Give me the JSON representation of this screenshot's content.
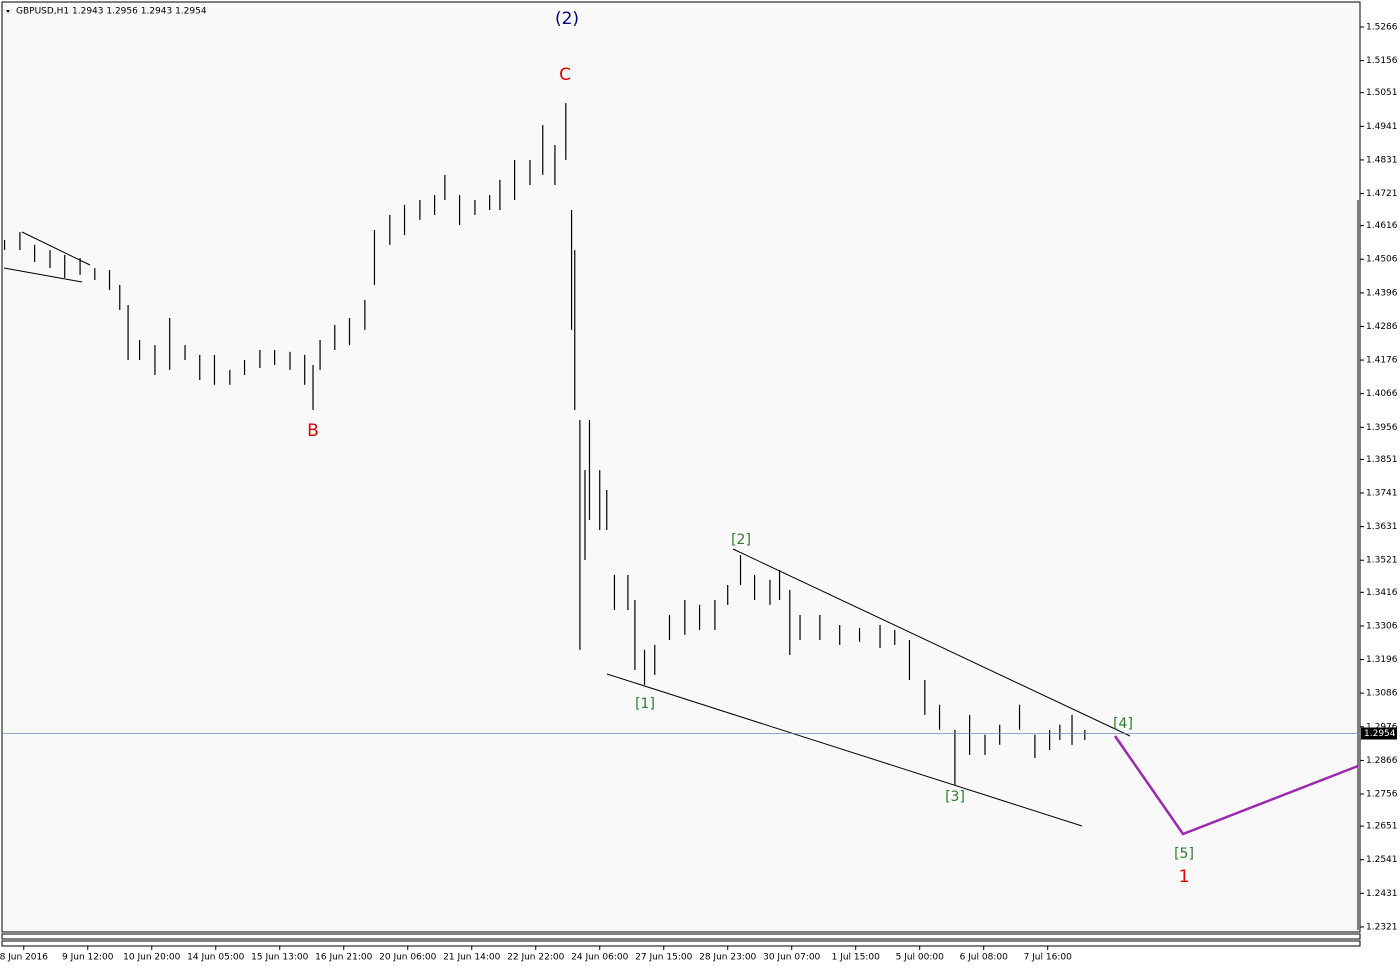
{
  "header": "GBPUSD,H1  1.2943 1.2956 1.2943 1.2954",
  "annotations": {
    "wave_2": "(2)",
    "c": "C",
    "b": "B",
    "w1": "[1]",
    "w2": "[2]",
    "w3": "[3]",
    "w4": "[4]",
    "w5": "[5]",
    "one": "1"
  },
  "chart_data": {
    "type": "hilo",
    "current_price": 1.2954,
    "ylim": [
      1.2311,
      1.5338
    ],
    "yticks": [
      1.5266,
      1.5156,
      1.5051,
      1.4941,
      1.4831,
      1.4721,
      1.4616,
      1.4506,
      1.4396,
      1.4286,
      1.4176,
      1.4066,
      1.3956,
      1.3851,
      1.3741,
      1.3631,
      1.3521,
      1.3416,
      1.3306,
      1.3196,
      1.3086,
      1.2976,
      1.2866,
      1.2756,
      1.2651,
      1.2541,
      1.2431,
      1.2321
    ],
    "xlim": [
      -0.34,
      20.88
    ],
    "xticks": [
      {
        "value": 0,
        "label": "8 Jun 2016"
      },
      {
        "value": 1,
        "label": "9 Jun 12:00"
      },
      {
        "value": 2,
        "label": "10 Jun 20:00"
      },
      {
        "value": 3,
        "label": "14 Jun 05:00"
      },
      {
        "value": 4,
        "label": "15 Jun 13:00"
      },
      {
        "value": 5,
        "label": "16 Jun 21:00"
      },
      {
        "value": 6,
        "label": "20 Jun 06:00"
      },
      {
        "value": 7,
        "label": "21 Jun 14:00"
      },
      {
        "value": 8,
        "label": "22 Jun 22:00"
      },
      {
        "value": 9,
        "label": "24 Jun 06:00"
      },
      {
        "value": 10,
        "label": "27 Jun 15:00"
      },
      {
        "value": 11,
        "label": "28 Jun 23:00"
      },
      {
        "value": 12,
        "label": "30 Jun 07:00"
      },
      {
        "value": 13,
        "label": "1 Jul 15:00"
      },
      {
        "value": 14,
        "label": "5 Jul 00:00"
      },
      {
        "value": 15,
        "label": "6 Jul 08:00"
      },
      {
        "value": 16,
        "label": "7 Jul 16:00"
      }
    ],
    "x": [
      -0.3,
      -0.06,
      0.17,
      0.41,
      0.64,
      0.88,
      1.11,
      1.34,
      1.5,
      1.63,
      1.81,
      2.05,
      2.28,
      2.52,
      2.75,
      2.98,
      3.22,
      3.45,
      3.69,
      3.92,
      4.16,
      4.39,
      4.52,
      4.63,
      4.86,
      5.09,
      5.33,
      5.48,
      5.72,
      5.95,
      6.19,
      6.42,
      6.58,
      6.81,
      7.05,
      7.28,
      7.44,
      7.67,
      7.91,
      8.11,
      8.3,
      8.47,
      8.56,
      8.61,
      8.69,
      8.77,
      8.84,
      9.0,
      9.11,
      9.23,
      9.44,
      9.55,
      9.7,
      9.86,
      10.09,
      10.33,
      10.56,
      10.8,
      11.0,
      11.2,
      11.42,
      11.66,
      11.81,
      11.97,
      12.13,
      12.44,
      12.75,
      13.06,
      13.38,
      13.61,
      13.84,
      14.08,
      14.31,
      14.55,
      14.78,
      15.02,
      15.25,
      15.56,
      15.8,
      16.03,
      16.19,
      16.38,
      16.58
    ],
    "high": [
      1.4569,
      1.4595,
      1.4553,
      1.4536,
      1.452,
      1.451,
      1.4477,
      1.4471,
      1.4422,
      1.4356,
      1.4242,
      1.4225,
      1.4314,
      1.4225,
      1.4193,
      1.4193,
      1.4144,
      1.4176,
      1.4209,
      1.4209,
      1.4203,
      1.4193,
      1.416,
      1.4242,
      1.4291,
      1.4314,
      1.4373,
      1.4602,
      1.4651,
      1.4684,
      1.47,
      1.4716,
      1.4782,
      1.4716,
      1.47,
      1.4716,
      1.4766,
      1.4831,
      1.4831,
      1.4945,
      1.488,
      1.5017,
      1.4667,
      1.4536,
      1.398,
      1.3816,
      1.398,
      1.3816,
      1.3751,
      1.3473,
      1.3473,
      1.3391,
      1.3228,
      1.3244,
      1.3342,
      1.3391,
      1.3375,
      1.3391,
      1.344,
      1.3538,
      1.3473,
      1.3457,
      1.3489,
      1.3424,
      1.3342,
      1.3342,
      1.3309,
      1.33,
      1.3309,
      1.3293,
      1.326,
      1.3129,
      1.3048,
      1.2966,
      1.3015,
      1.295,
      1.2983,
      1.3048,
      1.295,
      1.2966,
      1.2983,
      1.3015,
      1.2966
    ],
    "low": [
      1.4536,
      1.4536,
      1.4497,
      1.4477,
      1.4445,
      1.4455,
      1.4438,
      1.4405,
      1.434,
      1.4176,
      1.4176,
      1.4127,
      1.4144,
      1.4176,
      1.4111,
      1.4095,
      1.4095,
      1.4127,
      1.415,
      1.416,
      1.4144,
      1.4095,
      1.4013,
      1.4144,
      1.4209,
      1.4225,
      1.4275,
      1.4422,
      1.4553,
      1.4585,
      1.4635,
      1.4651,
      1.47,
      1.4618,
      1.4651,
      1.4667,
      1.4667,
      1.47,
      1.4749,
      1.4782,
      1.4749,
      1.4831,
      1.4275,
      1.4013,
      1.3228,
      1.3522,
      1.3653,
      1.362,
      1.362,
      1.3358,
      1.3358,
      1.3162,
      1.3113,
      1.3146,
      1.326,
      1.3277,
      1.3293,
      1.3293,
      1.3375,
      1.344,
      1.3391,
      1.3375,
      1.3391,
      1.3211,
      1.326,
      1.326,
      1.3244,
      1.3254,
      1.3234,
      1.3244,
      1.3129,
      1.3015,
      1.2966,
      1.2786,
      1.2884,
      1.2884,
      1.2917,
      1.2966,
      1.2874,
      1.29,
      1.2933,
      1.2917,
      1.2933
    ]
  }
}
